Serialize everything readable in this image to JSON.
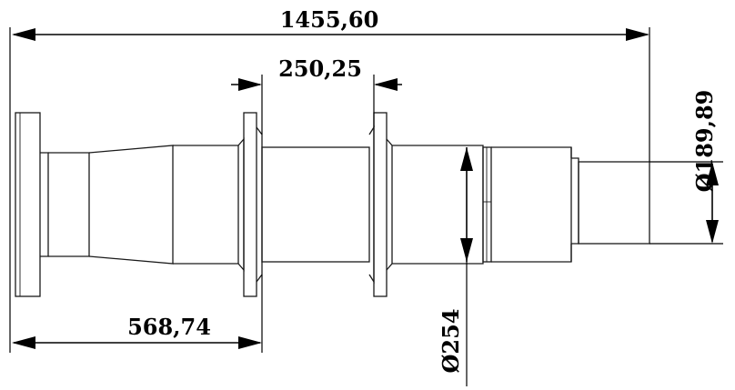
{
  "dimensions": {
    "overall_length": "1455,60",
    "middle_span": "250,25",
    "left_offset": "568,74",
    "small_diameter": "189,89",
    "large_diameter": "254",
    "diameter_symbol": "Ø"
  }
}
